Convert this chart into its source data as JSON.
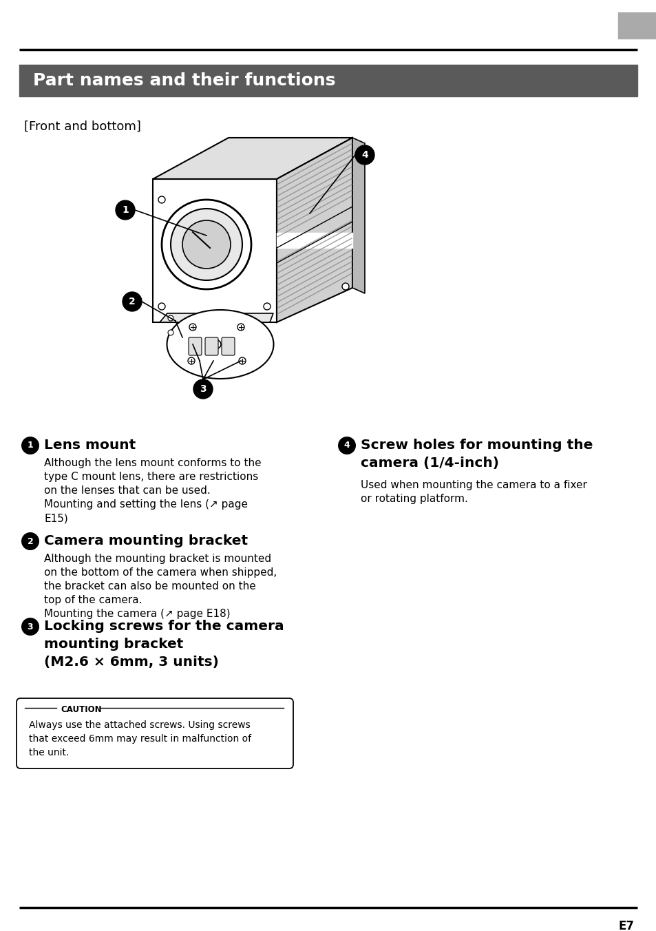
{
  "title": "Part names and their functions",
  "title_bg_color": "#5a5a5a",
  "title_text_color": "#ffffff",
  "section_label": "[Front and bottom]",
  "page_bg": "#ffffff",
  "page_number": "E7",
  "gray_tab_color": "#aaaaaa",
  "line_color": "#000000",
  "items": [
    {
      "number": "1",
      "heading": "Lens mount",
      "body_lines": [
        "Although the lens mount conforms to the",
        "type C mount lens, there are restrictions",
        "on the lenses that can be used.",
        "Mounting and setting the lens (↗ page",
        "E15)"
      ]
    },
    {
      "number": "2",
      "heading": "Camera mounting bracket",
      "body_lines": [
        "Although the mounting bracket is mounted",
        "on the bottom of the camera when shipped,",
        "the bracket can also be mounted on the",
        "top of the camera.",
        "Mounting the camera (↗ page E18)"
      ]
    },
    {
      "number": "3",
      "heading_lines": [
        "Locking screws for the camera",
        "mounting bracket",
        "(M2.6 × 6mm, 3 units)"
      ],
      "body_lines": []
    },
    {
      "number": "4",
      "heading_lines": [
        "Screw holes for mounting the",
        "camera (1/4-inch)"
      ],
      "body_lines": [
        "Used when mounting the camera to a fixer",
        "or rotating platform."
      ]
    }
  ],
  "caution_title": "CAUTION",
  "caution_lines": [
    "Always use the attached screws. Using screws",
    "that exceed 6mm may result in malfunction of",
    "the unit."
  ]
}
